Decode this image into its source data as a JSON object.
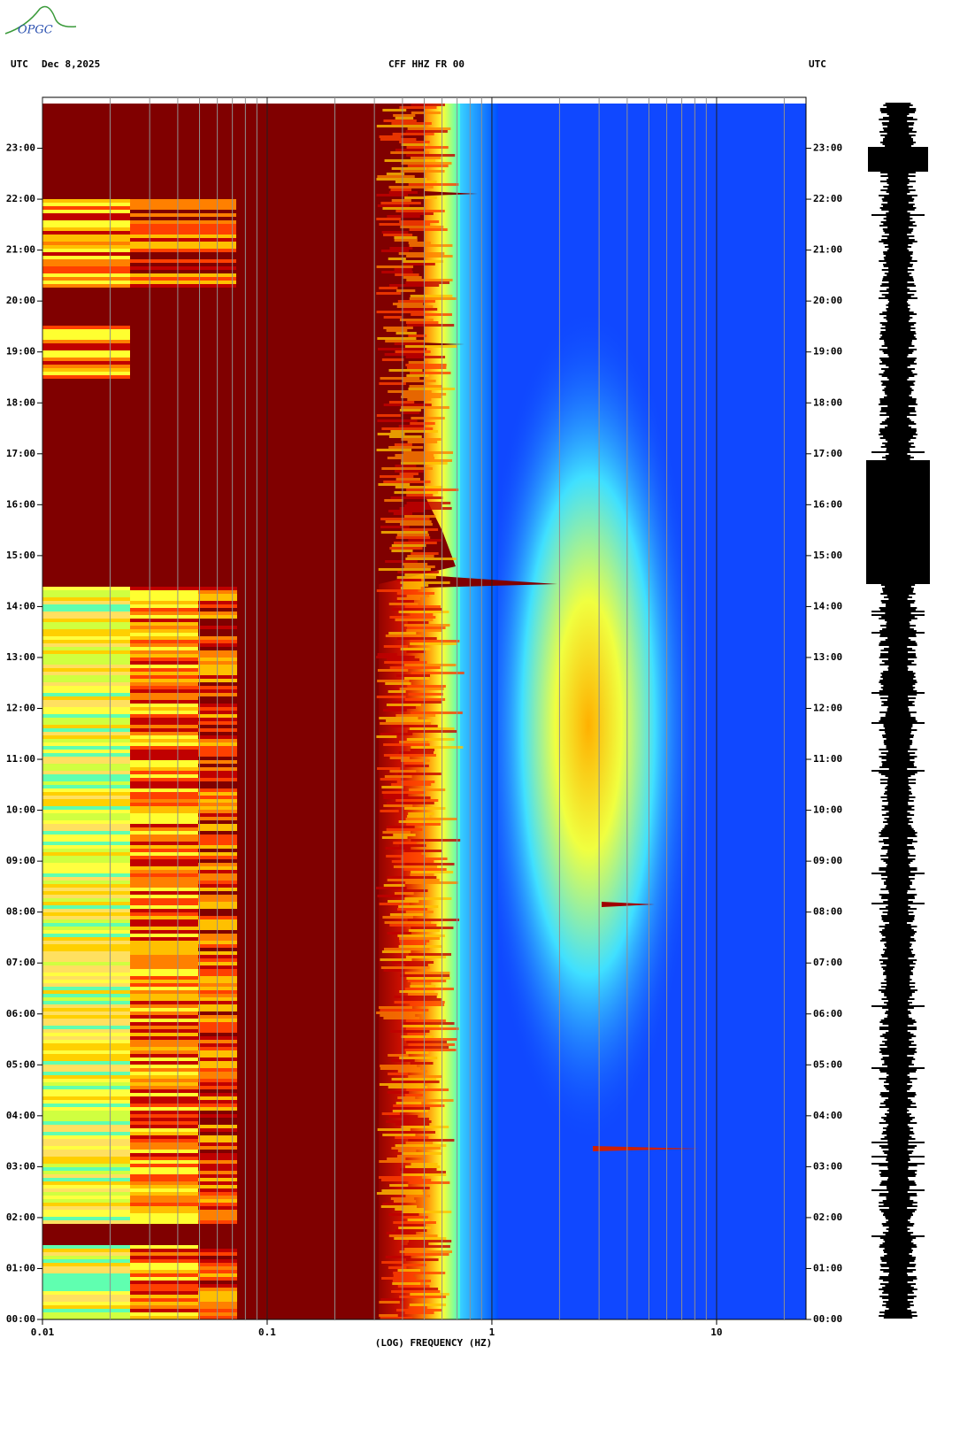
{
  "chart_data": {
    "type": "spectrogram",
    "logo": "OPGC",
    "tz_left": "UTC",
    "date": "Dec 8,2025",
    "title": "CFF HHZ FR 00",
    "tz_right": "UTC",
    "x_label": "(LOG) FREQUENCY (HZ)",
    "xscale": "log",
    "xlim": [
      0.01,
      25
    ],
    "xticks": [
      0.01,
      0.1,
      1,
      10
    ],
    "xminor": [
      0.02,
      0.03,
      0.04,
      0.05,
      0.06,
      0.07,
      0.08,
      0.09,
      0.2,
      0.3,
      0.4,
      0.5,
      0.6,
      0.7,
      0.8,
      0.9,
      2,
      3,
      4,
      5,
      6,
      7,
      8,
      9,
      20
    ],
    "ylim": [
      0,
      24
    ],
    "yticks": [
      {
        "value": 0,
        "label": "00:00"
      },
      {
        "value": 1,
        "label": "01:00"
      },
      {
        "value": 2,
        "label": "02:00"
      },
      {
        "value": 3,
        "label": "03:00"
      },
      {
        "value": 4,
        "label": "04:00"
      },
      {
        "value": 5,
        "label": "05:00"
      },
      {
        "value": 6,
        "label": "06:00"
      },
      {
        "value": 7,
        "label": "07:00"
      },
      {
        "value": 8,
        "label": "08:00"
      },
      {
        "value": 9,
        "label": "09:00"
      },
      {
        "value": 10,
        "label": "10:00"
      },
      {
        "value": 11,
        "label": "11:00"
      },
      {
        "value": 12,
        "label": "12:00"
      },
      {
        "value": 13,
        "label": "13:00"
      },
      {
        "value": 14,
        "label": "14:00"
      },
      {
        "value": 15,
        "label": "15:00"
      },
      {
        "value": 16,
        "label": "16:00"
      },
      {
        "value": 17,
        "label": "17:00"
      },
      {
        "value": 18,
        "label": "18:00"
      },
      {
        "value": 19,
        "label": "19:00"
      },
      {
        "value": 20,
        "label": "20:00"
      },
      {
        "value": 21,
        "label": "21:00"
      },
      {
        "value": 22,
        "label": "22:00"
      },
      {
        "value": 23,
        "label": "23:00"
      }
    ]
  }
}
